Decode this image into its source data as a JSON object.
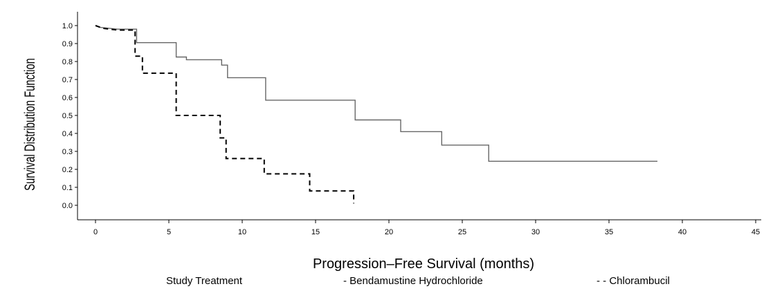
{
  "chart_data": {
    "type": "line",
    "title": "",
    "xlabel": "Progression–Free Survival (months)",
    "ylabel": "Survival Distribution Function",
    "xlim": [
      0,
      45
    ],
    "ylim": [
      0,
      1
    ],
    "x_ticks": [
      0,
      5,
      10,
      15,
      20,
      25,
      30,
      35,
      40,
      45
    ],
    "x_tick_labels": [
      "0",
      "5",
      "10",
      "15",
      "20",
      "25",
      "30",
      "35",
      "40",
      "45"
    ],
    "y_ticks": [
      0.0,
      0.1,
      0.2,
      0.3,
      0.4,
      0.5,
      0.6,
      0.7,
      0.8,
      0.9,
      1.0
    ],
    "y_tick_labels": [
      "0.0",
      "0.1",
      "0.2",
      "0.3",
      "0.4",
      "0.5",
      "0.6",
      "0.7",
      "0.8",
      "0.9",
      "1.0"
    ],
    "grid": false,
    "legend_placement": "bottom",
    "legend_title": "Study Treatment",
    "series": [
      {
        "name": "Bendamustine  Hydrochloride",
        "legend_label": "- Bendamustine  Hydrochloride",
        "style": "solid",
        "color": "#666666",
        "x": [
          0,
          0.3,
          1.5,
          2.8,
          2.8,
          5.5,
          5.5,
          6.2,
          6.2,
          8.6,
          8.6,
          9.0,
          9.0,
          11.6,
          11.6,
          17.7,
          17.7,
          20.8,
          20.8,
          23.6,
          23.6,
          26.8,
          26.8,
          38.3
        ],
        "y": [
          1.0,
          0.99,
          0.98,
          0.98,
          0.905,
          0.905,
          0.825,
          0.825,
          0.81,
          0.81,
          0.78,
          0.78,
          0.71,
          0.71,
          0.585,
          0.585,
          0.475,
          0.475,
          0.41,
          0.41,
          0.335,
          0.335,
          0.245,
          0.245
        ]
      },
      {
        "name": "Chlorambucil",
        "legend_label": "- - Chlorambucil",
        "style": "dashed",
        "color": "#000000",
        "x": [
          0,
          0.5,
          1.5,
          2.7,
          2.7,
          3.2,
          3.2,
          5.5,
          5.5,
          8.5,
          8.5,
          8.9,
          8.9,
          11.5,
          11.5,
          14.6,
          14.6,
          17.6,
          17.6
        ],
        "y": [
          1.0,
          0.985,
          0.975,
          0.975,
          0.83,
          0.83,
          0.735,
          0.735,
          0.5,
          0.5,
          0.375,
          0.375,
          0.26,
          0.26,
          0.175,
          0.175,
          0.08,
          0.08,
          0.01
        ]
      }
    ]
  }
}
